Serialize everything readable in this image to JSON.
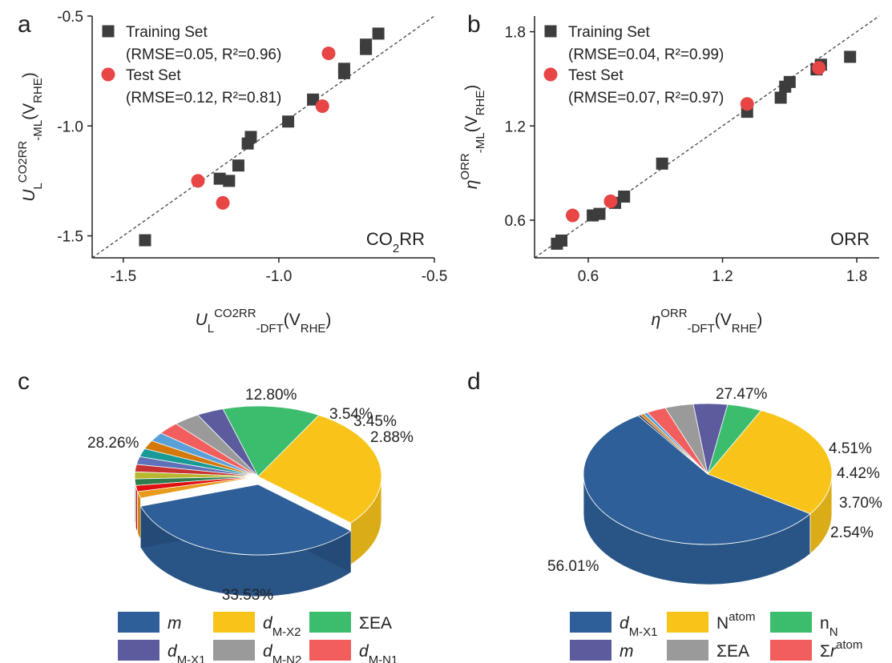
{
  "chart_data": [
    {
      "panel": "a",
      "type": "scatter",
      "xlim": [
        -1.6,
        -0.5
      ],
      "ylim": [
        -1.6,
        -0.5
      ],
      "xticks": [
        "-1.5",
        "-1.0",
        "-0.5"
      ],
      "yticks": [
        "-1.5",
        "-1.0",
        "-0.5"
      ],
      "xlabel": {
        "main": "U",
        "sub": "L",
        "sup": "CO2RR",
        "suffix": "-DFT",
        "unit": "V",
        "unit_sub": "RHE"
      },
      "ylabel": {
        "main": "U",
        "sub": "L",
        "sup": "CO2RR",
        "suffix": "-ML",
        "unit": "V",
        "unit_sub": "RHE"
      },
      "annotation": {
        "pre": "CO",
        "sub": "2",
        "post": "RR"
      },
      "legend": [
        {
          "label": "Training Set",
          "metrics": "(RMSE=0.05, R²=0.96)",
          "marker": "square",
          "color": "#3d3d3d"
        },
        {
          "label": "Test Set",
          "metrics": "(RMSE=0.12, R²=0.81)",
          "marker": "circle",
          "color": "#e84545"
        }
      ],
      "series": [
        {
          "name": "Training Set",
          "marker": "square",
          "color": "#3d3d3d",
          "points": [
            [
              -1.43,
              -1.52
            ],
            [
              -1.19,
              -1.24
            ],
            [
              -1.16,
              -1.25
            ],
            [
              -1.13,
              -1.18
            ],
            [
              -1.1,
              -1.08
            ],
            [
              -1.09,
              -1.05
            ],
            [
              -0.97,
              -0.98
            ],
            [
              -0.89,
              -0.88
            ],
            [
              -0.79,
              -0.74
            ],
            [
              -0.79,
              -0.76
            ],
            [
              -0.72,
              -0.65
            ],
            [
              -0.72,
              -0.63
            ],
            [
              -0.68,
              -0.58
            ]
          ]
        },
        {
          "name": "Test Set",
          "marker": "circle",
          "color": "#e84545",
          "points": [
            [
              -1.26,
              -1.25
            ],
            [
              -1.18,
              -1.35
            ],
            [
              -0.86,
              -0.91
            ],
            [
              -0.84,
              -0.67
            ]
          ]
        }
      ]
    },
    {
      "panel": "b",
      "type": "scatter",
      "xlim": [
        0.36,
        1.9
      ],
      "ylim": [
        0.36,
        1.9
      ],
      "xticks": [
        "0.6",
        "1.2",
        "1.8"
      ],
      "yticks": [
        "0.6",
        "1.2",
        "1.8"
      ],
      "xlabel": {
        "main": "η",
        "sup": "ORR",
        "suffix": "-DFT",
        "unit": "V",
        "unit_sub": "RHE"
      },
      "ylabel": {
        "main": "η",
        "sup": "ORR",
        "suffix": "-ML",
        "unit": "V",
        "unit_sub": "RHE"
      },
      "annotation": {
        "pre": "ORR",
        "sub": "",
        "post": ""
      },
      "legend": [
        {
          "label": "Training Set",
          "metrics": "(RMSE=0.04, R²=0.99)",
          "marker": "square",
          "color": "#3d3d3d"
        },
        {
          "label": "Test Set",
          "metrics": "(RMSE=0.07, R²=0.97)",
          "marker": "circle",
          "color": "#e84545"
        }
      ],
      "series": [
        {
          "name": "Training Set",
          "marker": "square",
          "color": "#3d3d3d",
          "points": [
            [
              0.46,
              0.45
            ],
            [
              0.48,
              0.47
            ],
            [
              0.62,
              0.63
            ],
            [
              0.65,
              0.64
            ],
            [
              0.72,
              0.71
            ],
            [
              0.76,
              0.75
            ],
            [
              0.93,
              0.96
            ],
            [
              1.31,
              1.29
            ],
            [
              1.46,
              1.38
            ],
            [
              1.48,
              1.45
            ],
            [
              1.5,
              1.48
            ],
            [
              1.62,
              1.56
            ],
            [
              1.64,
              1.59
            ],
            [
              1.77,
              1.64
            ]
          ]
        },
        {
          "name": "Test Set",
          "marker": "circle",
          "color": "#e84545",
          "points": [
            [
              0.53,
              0.63
            ],
            [
              0.7,
              0.72
            ],
            [
              1.31,
              1.34
            ],
            [
              1.63,
              1.57
            ]
          ]
        }
      ]
    },
    {
      "panel": "c",
      "type": "pie",
      "slices": [
        {
          "name": "m",
          "value": 33.53,
          "label": "33.53%",
          "color": "#2e5f98"
        },
        {
          "name": "d_M-X2",
          "value": 28.26,
          "label": "28.26%",
          "color": "#f8c41a"
        },
        {
          "name": "ΣEA",
          "value": 12.8,
          "label": "12.80%",
          "color": "#3cbd6d"
        },
        {
          "name": "d_M-X1",
          "value": 3.54,
          "label": "3.54%",
          "color": "#5b5b9e"
        },
        {
          "name": "d_M-N2",
          "value": 3.45,
          "label": "3.45%",
          "color": "#9a9a9a"
        },
        {
          "name": "d_M-N1",
          "value": 2.88,
          "label": "2.88%",
          "color": "#f25d5d"
        },
        {
          "value": 2.1,
          "color": "#5aa0d8"
        },
        {
          "value": 2.0,
          "color": "#d4780c"
        },
        {
          "value": 1.9,
          "color": "#1a9a96"
        },
        {
          "value": 1.8,
          "color": "#5f72b7"
        },
        {
          "value": 1.7,
          "color": "#c83232"
        },
        {
          "value": 1.6,
          "color": "#b8b830"
        },
        {
          "value": 1.5,
          "color": "#2f7d4f"
        },
        {
          "value": 1.4,
          "color": "#e01010"
        },
        {
          "value": 1.53,
          "color": "#e89a1a"
        }
      ],
      "legend": [
        {
          "base": "m",
          "sub": "",
          "italic": true,
          "color": "#2e5f98"
        },
        {
          "base": "d",
          "sub": "M-X2",
          "italic": true,
          "color": "#f8c41a"
        },
        {
          "base": "ΣEA",
          "sub": "",
          "italic": false,
          "color": "#3cbd6d"
        },
        {
          "base": "d",
          "sub": "M-X1",
          "italic": true,
          "color": "#5b5b9e"
        },
        {
          "base": "d",
          "sub": "M-N2",
          "italic": true,
          "color": "#9a9a9a"
        },
        {
          "base": "d",
          "sub": "M-N1",
          "italic": true,
          "color": "#f25d5d"
        }
      ]
    },
    {
      "panel": "d",
      "type": "pie",
      "slices": [
        {
          "name": "d_M-X1",
          "value": 56.01,
          "label": "56.01%",
          "color": "#2e5f98"
        },
        {
          "name": "N^atom",
          "value": 27.47,
          "label": "27.47%",
          "color": "#f8c41a"
        },
        {
          "name": "n_N",
          "value": 4.51,
          "label": "4.51%",
          "color": "#3cbd6d"
        },
        {
          "name": "m",
          "value": 4.42,
          "label": "4.42%",
          "color": "#5b5b9e"
        },
        {
          "name": "ΣEA",
          "value": 3.7,
          "label": "3.70%",
          "color": "#9a9a9a"
        },
        {
          "name": "Σr^atom",
          "value": 2.54,
          "label": "2.54%",
          "color": "#f25d5d"
        },
        {
          "value": 0.55,
          "color": "#5aa0d8"
        },
        {
          "value": 0.45,
          "color": "#d4780c"
        },
        {
          "value": 0.35,
          "color": "#3d3d3d"
        }
      ],
      "legend": [
        {
          "base": "d",
          "sub": "M-X1",
          "sup": "",
          "italic": true,
          "color": "#2e5f98"
        },
        {
          "base": "N",
          "sub": "",
          "sup": "atom",
          "italic": false,
          "color": "#f8c41a"
        },
        {
          "base": "n",
          "sub": "N",
          "sup": "",
          "italic": false,
          "color": "#3cbd6d"
        },
        {
          "base": "m",
          "sub": "",
          "sup": "",
          "italic": true,
          "color": "#5b5b9e"
        },
        {
          "base": "ΣEA",
          "sub": "",
          "sup": "",
          "italic": false,
          "color": "#9a9a9a"
        },
        {
          "base": "Σ",
          "ibase": "r",
          "sub": "",
          "sup": "atom",
          "italic": false,
          "color": "#f25d5d"
        }
      ]
    }
  ]
}
